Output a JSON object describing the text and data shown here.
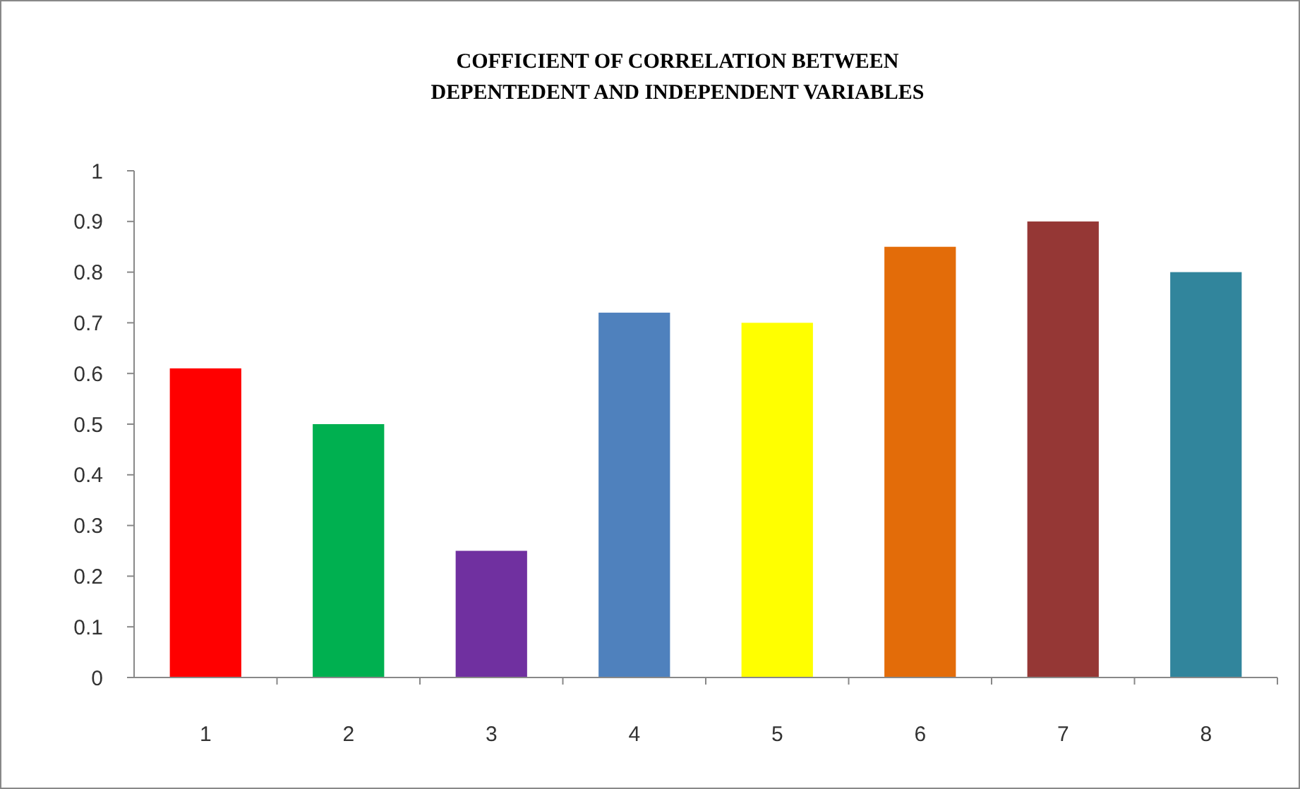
{
  "chart_data": {
    "type": "bar",
    "title": "COFFICIENT OF CORRELATION BETWEEN\nDEPENTEDENT AND INDEPENDENT VARIABLES",
    "categories": [
      "1",
      "2",
      "3",
      "4",
      "5",
      "6",
      "7",
      "8"
    ],
    "values": [
      0.61,
      0.5,
      0.25,
      0.72,
      0.7,
      0.85,
      0.9,
      0.8
    ],
    "colors": [
      "#ff0000",
      "#00b050",
      "#7030a0",
      "#4f81bd",
      "#ffff00",
      "#e36c09",
      "#953735",
      "#31859c"
    ],
    "ylim": [
      0,
      1
    ],
    "yticks": [
      0,
      0.1,
      0.2,
      0.3,
      0.4,
      0.5,
      0.6,
      0.7,
      0.8,
      0.9,
      1
    ],
    "grid": false
  }
}
